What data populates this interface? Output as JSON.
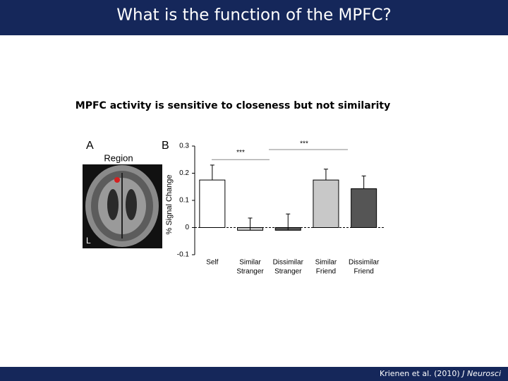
{
  "slide": {
    "title": "What is the function of the MPFC?",
    "subtitle": "MPFC activity is sensitive to closeness but not similarity",
    "citation": "Krienen et al. (2010)",
    "journal": "J Neurosci"
  },
  "panel_a": {
    "label": "A",
    "title": "Region",
    "side": "L"
  },
  "chart_data": {
    "type": "bar",
    "panel_label": "B",
    "y_label": "% Signal Change",
    "categories": [
      [
        "Self"
      ],
      [
        "Similar",
        "Stranger"
      ],
      [
        "Dissimilar",
        "Stranger"
      ],
      [
        "Similar",
        "Friend"
      ],
      [
        "Dissimilar",
        "Friend"
      ]
    ],
    "values": [
      0.175,
      -0.01,
      -0.01,
      0.175,
      0.143
    ],
    "errors": [
      0.055,
      0.045,
      0.06,
      0.04,
      0.047
    ],
    "colors": [
      "#ffffff",
      "#c8c8c8",
      "#555555",
      "#c8c8c8",
      "#555555"
    ],
    "ylim": [
      -0.1,
      0.3
    ],
    "yticks": [
      -0.1,
      0,
      0.1,
      0.2,
      0.3
    ],
    "annotations": [
      {
        "text": "***",
        "y": 0.25
      },
      {
        "text": "***",
        "y": 0.287
      }
    ]
  }
}
